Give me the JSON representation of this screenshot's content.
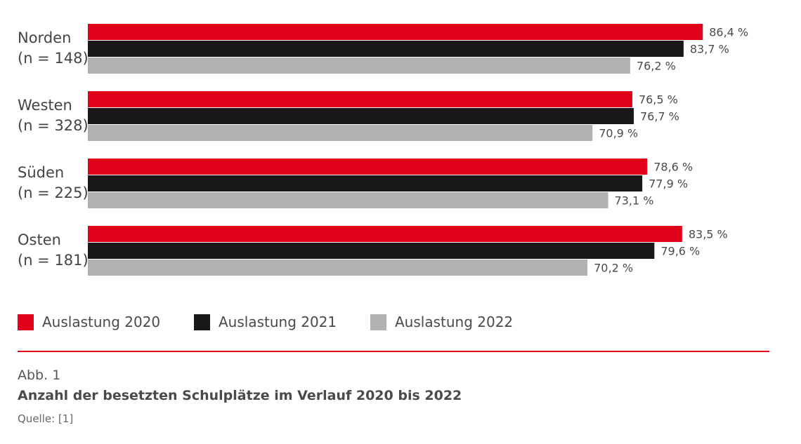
{
  "chart_data": {
    "type": "bar",
    "orientation": "horizontal",
    "categories": [
      "Norden",
      "Westen",
      "Süden",
      "Osten"
    ],
    "category_n": [
      "(n = 148)",
      "(n = 328)",
      "(n = 225)",
      "(n = 181)"
    ],
    "series": [
      {
        "name": "Auslastung 2020",
        "color": "#e1001a",
        "values": [
          86.4,
          76.5,
          78.6,
          83.5
        ],
        "labels": [
          "86,4 %",
          "76,5 %",
          "78,6 %",
          "83,5 %"
        ]
      },
      {
        "name": "Auslastung 2021",
        "color": "#1a1718",
        "values": [
          83.7,
          76.7,
          77.9,
          79.6
        ],
        "labels": [
          "83,7 %",
          "76,7 %",
          "77,9 %",
          "79,6 %"
        ]
      },
      {
        "name": "Auslastung 2022",
        "color": "#b1b1b1",
        "values": [
          76.2,
          70.9,
          73.1,
          70.2
        ],
        "labels": [
          "76,2 %",
          "70,9 %",
          "73,1 %",
          "70,2 %"
        ]
      }
    ],
    "xlim": [
      0,
      100
    ],
    "grid": false,
    "legend_position": "bottom-left"
  },
  "figure": {
    "number": "Abb. 1",
    "title": "Anzahl der besetzten Schulplätze im Verlauf 2020 bis 2022",
    "source": "Quelle: [1]"
  },
  "colors": {
    "accent": "#e1001a",
    "rule": "#e1001a"
  }
}
